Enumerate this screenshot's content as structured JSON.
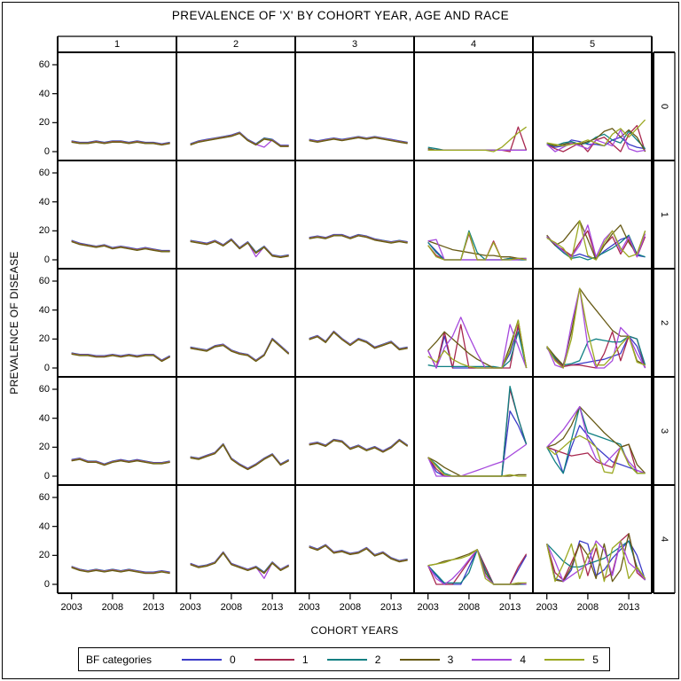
{
  "title": "PREVALENCE OF 'X' BY COHORT YEAR, AGE AND RACE",
  "xlabel": "COHORT YEARS",
  "ylabel": "PREVALENCE OF DISEASE",
  "column_band": {
    "labels": [
      "1",
      "2",
      "3",
      "4",
      "5"
    ]
  },
  "row_band": {
    "labels": [
      "0",
      "1",
      "2",
      "3",
      "4"
    ]
  },
  "legend": {
    "title": "BF categories",
    "entries": [
      {
        "label": "0",
        "color": "#3B3BC8"
      },
      {
        "label": "1",
        "color": "#A8284F"
      },
      {
        "label": "2",
        "color": "#0F7F82"
      },
      {
        "label": "3",
        "color": "#675A15"
      },
      {
        "label": "4",
        "color": "#A649DD"
      },
      {
        "label": "5",
        "color": "#9BA821"
      }
    ]
  },
  "chart_data": {
    "type": "line",
    "layout": "5x5 trellis, columns = race (1-5), rows = age (0-4), 6 overlaid series per panel (BF categories 0-5)",
    "title": "PREVALENCE OF 'X' BY COHORT YEAR, AGE AND RACE",
    "xlabel": "COHORT YEARS",
    "ylabel": "PREVALENCE OF DISEASE",
    "x_ticks": [
      2003,
      2008,
      2013
    ],
    "y_ticks": [
      60,
      40,
      20,
      0
    ],
    "xlim": [
      2001.3,
      2015.8
    ],
    "ylim": [
      0,
      60
    ],
    "grid": false,
    "legend_position": "bottom",
    "x": [
      2003,
      2004,
      2005,
      2006,
      2007,
      2008,
      2009,
      2010,
      2011,
      2012,
      2013,
      2014,
      2015
    ],
    "series_labels": [
      "0",
      "1",
      "2",
      "3",
      "4",
      "5"
    ],
    "panels": [
      {
        "c": 0,
        "r": 0,
        "shared": [
          7,
          6,
          6,
          7,
          6,
          7,
          7,
          6,
          7,
          6,
          6,
          5,
          6
        ]
      },
      {
        "c": 0,
        "r": 1,
        "shared": [
          13,
          11,
          10,
          9,
          10,
          8,
          9,
          8,
          7,
          8,
          7,
          6,
          6
        ]
      },
      {
        "c": 0,
        "r": 2,
        "shared": [
          10,
          9,
          9,
          8,
          8,
          9,
          8,
          9,
          8,
          9,
          9,
          5,
          8
        ]
      },
      {
        "c": 0,
        "r": 3,
        "shared": [
          11,
          12,
          10,
          10,
          8,
          10,
          11,
          10,
          11,
          10,
          9,
          9,
          10
        ]
      },
      {
        "c": 0,
        "r": 4,
        "shared": [
          12,
          10,
          9,
          10,
          9,
          10,
          9,
          10,
          9,
          8,
          8,
          9,
          8
        ]
      },
      {
        "c": 1,
        "r": 0,
        "shared": [
          5,
          7,
          8,
          9,
          10,
          11,
          13,
          8,
          5,
          9,
          8,
          4,
          4
        ],
        "overrides": {
          "4": {
            "9": 3
          }
        }
      },
      {
        "c": 1,
        "r": 1,
        "shared": [
          13,
          12,
          11,
          13,
          10,
          14,
          8,
          12,
          5,
          9,
          3,
          2,
          3
        ],
        "overrides": {
          "4": {
            "8": 2
          }
        }
      },
      {
        "c": 1,
        "r": 2,
        "shared": [
          14,
          13,
          12,
          15,
          16,
          12,
          10,
          9,
          5,
          9,
          20,
          15,
          10
        ]
      },
      {
        "c": 1,
        "r": 3,
        "shared": [
          13,
          12,
          14,
          16,
          22,
          12,
          8,
          5,
          8,
          12,
          15,
          8,
          11
        ]
      },
      {
        "c": 1,
        "r": 4,
        "shared": [
          14,
          12,
          13,
          15,
          22,
          14,
          12,
          10,
          12,
          8,
          15,
          10,
          13
        ],
        "overrides": {
          "4": {
            "9": 4
          }
        }
      },
      {
        "c": 2,
        "r": 0,
        "shared": [
          8,
          7,
          8,
          9,
          8,
          9,
          10,
          9,
          10,
          9,
          8,
          7,
          6
        ]
      },
      {
        "c": 2,
        "r": 1,
        "shared": [
          15,
          16,
          15,
          17,
          17,
          15,
          17,
          16,
          14,
          13,
          12,
          13,
          12
        ]
      },
      {
        "c": 2,
        "r": 2,
        "shared": [
          20,
          22,
          18,
          25,
          20,
          16,
          20,
          18,
          14,
          16,
          18,
          13,
          14
        ]
      },
      {
        "c": 2,
        "r": 3,
        "shared": [
          22,
          23,
          21,
          25,
          24,
          19,
          21,
          18,
          20,
          17,
          20,
          25,
          21
        ]
      },
      {
        "c": 2,
        "r": 4,
        "shared": [
          26,
          24,
          27,
          22,
          23,
          21,
          22,
          25,
          20,
          22,
          18,
          16,
          17
        ]
      },
      {
        "c": 3,
        "r": 0,
        "series": [
          [
            2,
            1,
            1,
            1,
            1,
            1,
            1,
            1,
            1,
            1,
            1,
            1,
            1
          ],
          [
            1,
            1,
            1,
            1,
            1,
            1,
            1,
            1,
            1,
            1,
            0,
            17,
            1
          ],
          [
            3,
            2,
            1,
            1,
            1,
            1,
            1,
            1,
            1,
            1,
            1,
            1,
            1
          ],
          [
            2,
            1,
            1,
            1,
            1,
            1,
            1,
            1,
            1,
            1,
            1,
            1,
            1
          ],
          [
            1,
            1,
            1,
            1,
            1,
            1,
            1,
            1,
            1,
            1,
            1,
            1,
            1
          ],
          [
            1,
            1,
            1,
            1,
            1,
            1,
            1,
            1,
            0,
            3,
            8,
            13,
            17
          ]
        ]
      },
      {
        "c": 3,
        "r": 1,
        "series": [
          [
            12,
            6,
            0,
            0,
            0,
            0,
            0,
            0,
            0,
            0,
            0,
            0,
            0
          ],
          [
            10,
            3,
            0,
            0,
            0,
            18,
            0,
            0,
            13,
            0,
            1,
            1,
            0
          ],
          [
            12,
            5,
            0,
            0,
            0,
            20,
            5,
            0,
            0,
            0,
            1,
            0,
            0
          ],
          [
            13,
            11,
            9,
            7,
            6,
            5,
            4,
            3,
            3,
            2,
            2,
            1,
            1
          ],
          [
            13,
            14,
            0,
            0,
            0,
            0,
            0,
            0,
            0,
            0,
            0,
            0,
            1
          ],
          [
            10,
            2,
            0,
            0,
            0,
            19,
            0,
            0,
            12,
            0,
            0,
            1,
            0
          ]
        ]
      },
      {
        "c": 3,
        "r": 2,
        "series": [
          [
            12,
            0,
            22,
            0,
            0,
            0,
            0,
            0,
            0,
            0,
            10,
            28,
            0
          ],
          [
            12,
            0,
            25,
            0,
            30,
            0,
            0,
            0,
            0,
            0,
            0,
            30,
            0
          ],
          [
            2,
            1,
            1,
            1,
            1,
            1,
            1,
            1,
            1,
            0,
            5,
            25,
            0
          ],
          [
            12,
            18,
            25,
            20,
            15,
            10,
            6,
            3,
            0,
            0,
            15,
            33,
            0
          ],
          [
            12,
            0,
            14,
            22,
            35,
            22,
            10,
            0,
            0,
            0,
            30,
            15,
            0
          ],
          [
            8,
            4,
            12,
            6,
            3,
            1,
            0,
            0,
            0,
            0,
            12,
            33,
            0
          ]
        ]
      },
      {
        "c": 3,
        "r": 3,
        "series": [
          [
            13,
            3,
            0,
            0,
            0,
            0,
            0,
            0,
            0,
            0,
            45,
            35,
            22
          ],
          [
            13,
            5,
            0,
            0,
            0,
            0,
            0,
            0,
            0,
            0,
            60,
            40,
            22
          ],
          [
            13,
            8,
            2,
            0,
            0,
            0,
            0,
            0,
            0,
            0,
            62,
            40,
            22
          ],
          [
            13,
            10,
            6,
            3,
            0,
            0,
            0,
            0,
            0,
            0,
            0,
            1,
            1
          ],
          [
            13,
            0,
            0,
            0,
            0,
            2,
            4,
            6,
            8,
            10,
            14,
            18,
            22
          ],
          [
            13,
            7,
            1,
            0,
            0,
            0,
            0,
            0,
            0,
            0,
            1,
            0,
            0
          ]
        ]
      },
      {
        "c": 3,
        "r": 4,
        "series": [
          [
            13,
            6,
            0,
            0,
            0,
            12,
            24,
            12,
            0,
            0,
            0,
            10,
            20
          ],
          [
            13,
            0,
            0,
            0,
            8,
            16,
            24,
            12,
            0,
            0,
            0,
            12,
            21
          ],
          [
            13,
            7,
            1,
            1,
            1,
            8,
            24,
            10,
            0,
            0,
            0,
            0,
            0
          ],
          [
            13,
            14,
            16,
            17,
            19,
            21,
            24,
            8,
            0,
            0,
            0,
            0,
            1
          ],
          [
            13,
            4,
            0,
            4,
            10,
            17,
            24,
            6,
            0,
            0,
            0,
            1,
            0
          ],
          [
            13,
            14,
            15,
            17,
            18,
            20,
            24,
            4,
            0,
            0,
            0,
            1,
            1
          ]
        ]
      },
      {
        "c": 4,
        "r": 0,
        "series": [
          [
            5,
            3,
            4,
            8,
            7,
            5,
            5,
            4,
            8,
            10,
            5,
            3,
            2
          ],
          [
            5,
            2,
            0,
            3,
            6,
            0,
            8,
            10,
            5,
            0,
            12,
            18,
            0
          ],
          [
            5,
            4,
            6,
            7,
            5,
            6,
            10,
            12,
            8,
            6,
            14,
            8,
            2
          ],
          [
            6,
            4,
            5,
            6,
            5,
            7,
            9,
            14,
            16,
            10,
            15,
            10,
            0
          ],
          [
            5,
            0,
            3,
            6,
            4,
            2,
            8,
            6,
            4,
            15,
            2,
            0,
            1
          ],
          [
            6,
            5,
            4,
            5,
            6,
            8,
            6,
            4,
            12,
            16,
            10,
            16,
            22
          ]
        ]
      },
      {
        "c": 4,
        "r": 1,
        "series": [
          [
            16,
            11,
            6,
            2,
            4,
            2,
            1,
            6,
            10,
            14,
            16,
            3,
            2
          ],
          [
            16,
            10,
            7,
            3,
            12,
            20,
            1,
            10,
            16,
            4,
            14,
            2,
            16
          ],
          [
            16,
            10,
            5,
            1,
            2,
            0,
            2,
            5,
            8,
            12,
            17,
            4,
            2
          ],
          [
            17,
            10,
            13,
            20,
            27,
            14,
            0,
            10,
            18,
            24,
            12,
            4,
            20
          ],
          [
            16,
            11,
            6,
            2,
            10,
            24,
            2,
            14,
            20,
            6,
            16,
            2,
            18
          ],
          [
            15,
            12,
            8,
            0,
            27,
            3,
            0,
            12,
            20,
            8,
            2,
            4,
            20
          ]
        ]
      },
      {
        "c": 4,
        "r": 2,
        "series": [
          [
            14,
            6,
            1,
            2,
            3,
            4,
            5,
            6,
            8,
            10,
            22,
            15,
            0
          ],
          [
            14,
            6,
            1,
            2,
            2,
            1,
            0,
            10,
            25,
            5,
            22,
            20,
            0
          ],
          [
            14,
            7,
            2,
            3,
            5,
            18,
            20,
            19,
            18,
            18,
            22,
            20,
            2
          ],
          [
            15,
            8,
            2,
            25,
            55,
            47,
            40,
            33,
            26,
            22,
            22,
            5,
            2
          ],
          [
            15,
            2,
            0,
            30,
            55,
            15,
            0,
            0,
            5,
            28,
            22,
            10,
            0
          ],
          [
            15,
            5,
            0,
            20,
            55,
            25,
            2,
            2,
            8,
            16,
            22,
            4,
            2
          ]
        ]
      },
      {
        "c": 4,
        "r": 3,
        "series": [
          [
            20,
            18,
            2,
            20,
            35,
            28,
            20,
            15,
            10,
            8,
            6,
            4,
            2
          ],
          [
            20,
            18,
            16,
            14,
            15,
            16,
            10,
            8,
            6,
            20,
            22,
            2,
            2
          ],
          [
            20,
            10,
            2,
            25,
            48,
            30,
            28,
            26,
            24,
            22,
            8,
            2,
            2
          ],
          [
            20,
            22,
            26,
            35,
            48,
            42,
            36,
            30,
            25,
            20,
            22,
            8,
            2
          ],
          [
            20,
            26,
            32,
            40,
            48,
            25,
            12,
            8,
            14,
            20,
            10,
            4,
            2
          ],
          [
            20,
            15,
            20,
            25,
            28,
            25,
            20,
            3,
            2,
            20,
            8,
            2,
            2
          ]
        ]
      },
      {
        "c": 4,
        "r": 4,
        "series": [
          [
            28,
            4,
            2,
            10,
            30,
            28,
            6,
            10,
            18,
            24,
            30,
            20,
            3
          ],
          [
            28,
            8,
            3,
            15,
            28,
            6,
            25,
            4,
            8,
            30,
            35,
            8,
            3
          ],
          [
            28,
            22,
            16,
            12,
            12,
            14,
            16,
            18,
            22,
            26,
            30,
            12,
            3
          ],
          [
            28,
            3,
            2,
            12,
            28,
            20,
            4,
            28,
            2,
            10,
            35,
            10,
            4
          ],
          [
            28,
            16,
            2,
            6,
            10,
            14,
            30,
            24,
            6,
            30,
            15,
            10,
            3
          ],
          [
            28,
            2,
            14,
            28,
            4,
            20,
            28,
            2,
            25,
            30,
            4,
            12,
            4
          ]
        ]
      }
    ]
  }
}
